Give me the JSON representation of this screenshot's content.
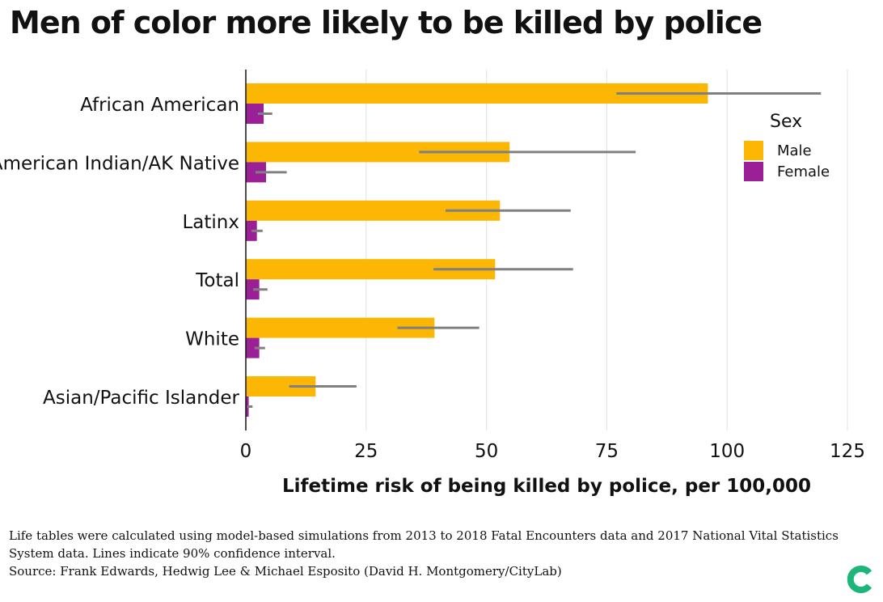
{
  "title": "Men of color more likely to be killed by police",
  "chart_data": {
    "type": "bar",
    "orientation": "horizontal",
    "title": "Men of color more likely to be killed by police",
    "xlabel": "Lifetime risk of being killed by police, per 100,000",
    "ylabel": "",
    "xlim": [
      0,
      125
    ],
    "xticks": [
      0,
      25,
      50,
      75,
      100,
      125
    ],
    "grid": true,
    "categories": [
      "African American",
      "American Indian/AK Native",
      "Latinx",
      "Total",
      "White",
      "Asian/Pacific Islander"
    ],
    "legend": {
      "title": "Sex",
      "position": "right"
    },
    "series": [
      {
        "name": "Male",
        "color": "#fbb703",
        "values": [
          96,
          54.8,
          52.8,
          51.8,
          39.2,
          14.5
        ],
        "ci_low": [
          77,
          36,
          41.5,
          39,
          31.5,
          9
        ],
        "ci_high": [
          119.5,
          81,
          67.5,
          68,
          48.5,
          23
        ]
      },
      {
        "name": "Female",
        "color": "#9b1f96",
        "values": [
          3.7,
          4.2,
          2.3,
          2.8,
          2.8,
          0.6
        ],
        "ci_low": [
          2.5,
          2,
          1.2,
          1.5,
          1.8,
          0.3
        ],
        "ci_high": [
          5.5,
          8.5,
          3.5,
          4.5,
          4,
          1.4
        ]
      }
    ]
  },
  "footer": {
    "note": "Life tables were calculated using model-based simulations from 2013 to 2018 Fatal Encounters data and 2017 National Vital Statistics System data. Lines indicate 90% confidence interval.",
    "source": "Source: Frank Edwards, Hedwig Lee & Michael Esposito (David H. Montgomery/CityLab)"
  },
  "colors": {
    "ci_line": "#808080",
    "grid": "#e6e6e6",
    "logo": "#1db57a"
  },
  "logo_icon": "citylab-logo-icon"
}
